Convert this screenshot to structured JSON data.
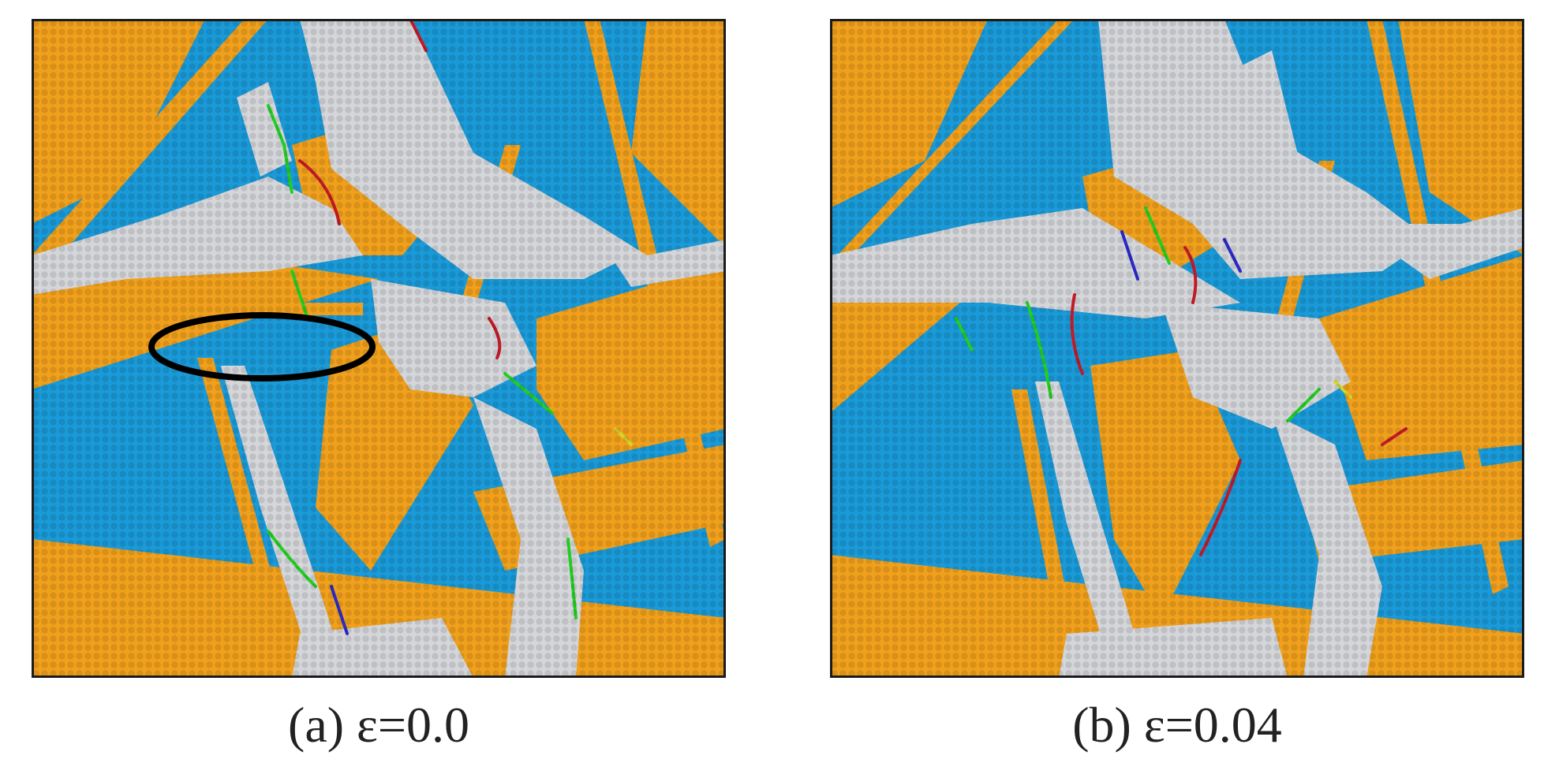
{
  "colors": {
    "fcc": "#1a9ad8",
    "hcp": "#f0a01c",
    "other": "#d4d6da",
    "frame": "#1b1b1b",
    "marker": "#000000",
    "dislocation_lines": [
      "#22d022",
      "#c41a28",
      "#2a2ac8",
      "#d6d62a"
    ]
  },
  "panels": [
    {
      "caption": "(a) ε=0.0",
      "annotation": "black-ellipse"
    },
    {
      "caption": "(b) ε=0.04"
    }
  ]
}
